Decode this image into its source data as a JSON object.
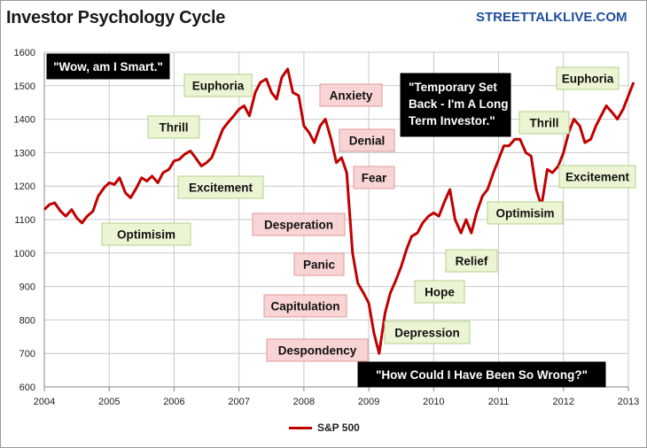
{
  "header": {
    "title": "Investor Psychology Cycle",
    "site": "STREETTALKLIVE.COM"
  },
  "chart_data": {
    "type": "line",
    "title": "Investor Psychology Cycle",
    "x_ticks": [
      "2004",
      "2005",
      "2006",
      "2007",
      "2008",
      "2009",
      "2010",
      "2011",
      "2012",
      "2013"
    ],
    "y_ticks": [
      600,
      700,
      800,
      900,
      1000,
      1100,
      1200,
      1300,
      1400,
      1500,
      1600
    ],
    "xlim": [
      2004,
      2013
    ],
    "ylim": [
      600,
      1600
    ],
    "grid": true,
    "legend_position": "bottom",
    "line_color": "#c00000",
    "series": [
      {
        "name": "S&P 500",
        "x": [
          2004.0,
          2004.08,
          2004.16,
          2004.25,
          2004.33,
          2004.42,
          2004.5,
          2004.58,
          2004.66,
          2004.75,
          2004.83,
          2004.92,
          2005.0,
          2005.08,
          2005.16,
          2005.25,
          2005.33,
          2005.42,
          2005.5,
          2005.58,
          2005.66,
          2005.75,
          2005.83,
          2005.92,
          2006.0,
          2006.08,
          2006.16,
          2006.25,
          2006.33,
          2006.42,
          2006.5,
          2006.58,
          2006.66,
          2006.75,
          2006.83,
          2006.92,
          2007.0,
          2007.08,
          2007.16,
          2007.25,
          2007.33,
          2007.42,
          2007.5,
          2007.58,
          2007.66,
          2007.75,
          2007.83,
          2007.92,
          2008.0,
          2008.08,
          2008.16,
          2008.25,
          2008.33,
          2008.42,
          2008.5,
          2008.58,
          2008.66,
          2008.75,
          2008.83,
          2008.92,
          2009.0,
          2009.08,
          2009.16,
          2009.25,
          2009.33,
          2009.42,
          2009.5,
          2009.58,
          2009.66,
          2009.75,
          2009.83,
          2009.92,
          2010.0,
          2010.08,
          2010.16,
          2010.25,
          2010.33,
          2010.42,
          2010.5,
          2010.58,
          2010.66,
          2010.75,
          2010.83,
          2010.92,
          2011.0,
          2011.08,
          2011.16,
          2011.25,
          2011.33,
          2011.42,
          2011.5,
          2011.58,
          2011.66,
          2011.75,
          2011.83,
          2011.92,
          2012.0,
          2012.08,
          2012.16,
          2012.25,
          2012.33,
          2012.42,
          2012.5,
          2012.58,
          2012.66,
          2012.75,
          2012.83,
          2012.92,
          2013.0,
          2013.08
        ],
        "values": [
          1130,
          1145,
          1150,
          1125,
          1110,
          1130,
          1105,
          1090,
          1110,
          1125,
          1170,
          1195,
          1210,
          1205,
          1225,
          1180,
          1165,
          1195,
          1225,
          1215,
          1230,
          1210,
          1240,
          1250,
          1275,
          1280,
          1295,
          1305,
          1285,
          1260,
          1270,
          1285,
          1325,
          1370,
          1390,
          1410,
          1430,
          1440,
          1410,
          1480,
          1510,
          1520,
          1480,
          1460,
          1525,
          1550,
          1480,
          1470,
          1380,
          1360,
          1330,
          1380,
          1400,
          1340,
          1270,
          1285,
          1240,
          1000,
          910,
          880,
          850,
          760,
          700,
          820,
          880,
          920,
          960,
          1010,
          1050,
          1060,
          1090,
          1110,
          1120,
          1110,
          1150,
          1190,
          1100,
          1060,
          1100,
          1060,
          1120,
          1170,
          1190,
          1240,
          1280,
          1320,
          1320,
          1340,
          1340,
          1300,
          1290,
          1190,
          1140,
          1250,
          1240,
          1260,
          1300,
          1360,
          1400,
          1380,
          1330,
          1340,
          1380,
          1410,
          1440,
          1420,
          1400,
          1430,
          1470,
          1510
        ]
      }
    ],
    "annotations": [
      {
        "text": "\"Wow, am I Smart.\"",
        "style": "dark"
      },
      {
        "text": "Optimisim",
        "style": "green"
      },
      {
        "text": "Excitement",
        "style": "green"
      },
      {
        "text": "Thrill",
        "style": "green"
      },
      {
        "text": "Euphoria",
        "style": "green"
      },
      {
        "text": "Anxiety",
        "style": "red"
      },
      {
        "text": "Denial",
        "style": "red"
      },
      {
        "text": "Fear",
        "style": "red"
      },
      {
        "text": "Desperation",
        "style": "red"
      },
      {
        "text": "Panic",
        "style": "red"
      },
      {
        "text": "Capitulation",
        "style": "red"
      },
      {
        "text": "Despondency",
        "style": "red"
      },
      {
        "text": "\"How Could I Have Been So Wrong?\"",
        "style": "dark"
      },
      {
        "text": "Depression",
        "style": "green"
      },
      {
        "text": "Hope",
        "style": "green"
      },
      {
        "text": "Relief",
        "style": "green"
      },
      {
        "text": "\"Temporary Set Back - I'm A Long Term Investor.\"",
        "style": "dark"
      },
      {
        "text": "Optimisim",
        "style": "green"
      },
      {
        "text": "Thrill",
        "style": "green"
      },
      {
        "text": "Euphoria",
        "style": "green"
      },
      {
        "text": "Excitement",
        "style": "green"
      }
    ],
    "colors": {
      "green_box": "#ebf5d4",
      "green_border": "#b6d08a",
      "red_box": "#f9d4d4",
      "red_border": "#e09a9a",
      "dark_box": "#000000",
      "dark_text": "#ffffff"
    }
  }
}
